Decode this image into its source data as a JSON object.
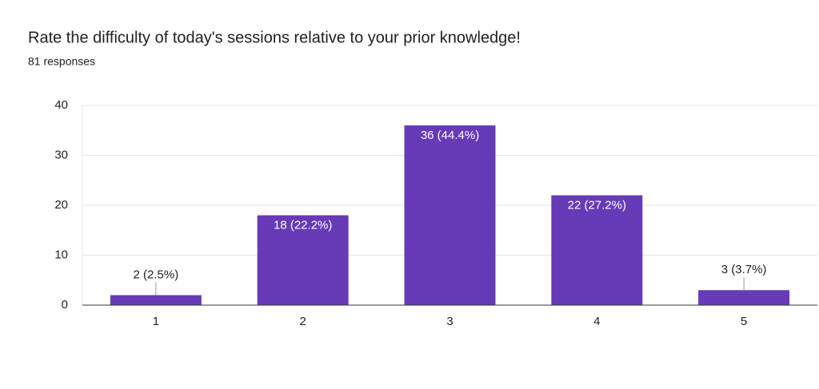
{
  "chart_data": {
    "type": "bar",
    "title": "Rate the difficulty of today's sessions relative to your prior knowledge!",
    "subtitle": "81 responses",
    "categories": [
      "1",
      "2",
      "3",
      "4",
      "5"
    ],
    "values": [
      2,
      18,
      36,
      22,
      3
    ],
    "value_labels": [
      "2 (2.5%)",
      "18 (22.2%)",
      "36 (44.4%)",
      "22 (27.2%)",
      "3 (3.7%)"
    ],
    "color": "#673ab7",
    "ylim": [
      0,
      40
    ],
    "yticks": [
      0,
      10,
      20,
      30,
      40
    ],
    "grid": true
  }
}
